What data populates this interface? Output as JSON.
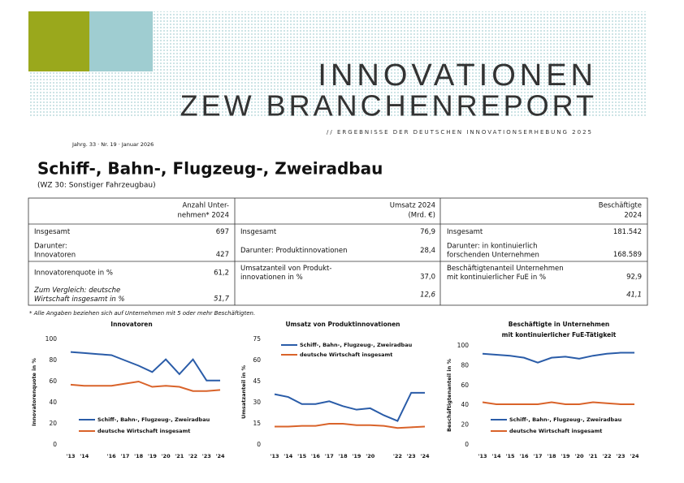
{
  "header": {
    "title": "INNOVATIONEN",
    "subtitle": "ZEW BRANCHENREPORT",
    "tagline": "// ERGEBNISSE DER DEUTSCHEN INNOVATIONSERHEBUNG 2025",
    "issue": "Jahrg. 33 · Nr. 19 · Januar 2026"
  },
  "heading": {
    "title": "Schiff-, Bahn-, Flugzeug-, Zweiradbau",
    "subtitle": "(WZ 30: Sonstiger Fahrzeugbau)"
  },
  "table": {
    "columns": [
      {
        "header": [
          "Anzahl Unter-",
          "nehmen* 2024"
        ],
        "rows": [
          {
            "label": [
              "Insgesamt"
            ],
            "value": "697"
          },
          {
            "label": [
              "Darunter:",
              "Innovatoren"
            ],
            "value": "427"
          },
          {
            "label": [
              "Innovatorenquote in %"
            ],
            "value": "61,2"
          },
          {
            "label": [
              "Zum Vergleich: deutsche",
              "Wirtschaft insgesamt in %"
            ],
            "value": "51,7"
          }
        ]
      },
      {
        "header": [
          "Umsatz 2024",
          "(Mrd. €)"
        ],
        "rows": [
          {
            "label": [
              "Insgesamt"
            ],
            "value": "76,9"
          },
          {
            "label": [
              "Darunter: Produktinnovationen"
            ],
            "value": "28,4"
          },
          {
            "label": [
              "Umsatzanteil von Produkt-",
              "innovationen in %"
            ],
            "value": "37,0"
          },
          {
            "value": "12,6"
          }
        ]
      },
      {
        "header": [
          "Beschäftigte",
          "2024"
        ],
        "rows": [
          {
            "label": [
              "Insgesamt"
            ],
            "value": "181.542"
          },
          {
            "label": [
              "Darunter: in kontinuierlich",
              "forschenden Unternehmen"
            ],
            "value": "168.589"
          },
          {
            "label": [
              "Beschäftigtenanteil Unternehmen",
              "mit kontinuierlicher FuE in %"
            ],
            "value": "92,9"
          },
          {
            "value": "41,1"
          }
        ]
      }
    ]
  },
  "footnote": "* Alle Angaben beziehen sich auf Unternehmen mit 5 oder mehr Beschäftigten.",
  "chart_data": [
    {
      "type": "line",
      "title": "Innovatoren",
      "y_label": "Innovatorenquote in %",
      "legend": "lower left",
      "categories": [
        "'13",
        "'14",
        null,
        "'16",
        "'17",
        "'18",
        "'19",
        "'20",
        "'21",
        "'22",
        "'23",
        "'24"
      ],
      "ylim": [
        0,
        100
      ],
      "yticks": [
        0,
        20,
        40,
        60,
        80,
        100
      ],
      "series": [
        {
          "name": "Schiff-, Bahn-, Flugzeug-, Zweiradbau",
          "color": "#2a5ca8",
          "values": [
            88,
            87,
            86,
            85,
            80,
            75,
            69,
            81,
            67,
            81,
            61,
            61
          ]
        },
        {
          "name": "deutsche Wirtschaft insgesamt",
          "color": "#d9632a",
          "values": [
            57,
            56,
            56,
            56,
            58,
            60,
            55,
            56,
            55,
            51,
            51,
            52
          ]
        }
      ]
    },
    {
      "type": "line",
      "title": "Umsatz von Produktinnovationen",
      "y_label": "Umsatzanteil in %",
      "legend": "upper left",
      "categories": [
        "'13",
        "'14",
        "'15",
        "'16",
        "'17",
        "'18",
        "'19",
        "'20",
        null,
        "'22",
        "'23",
        "'24"
      ],
      "ylim": [
        0,
        75
      ],
      "yticks": [
        0,
        15,
        30,
        45,
        60,
        75
      ],
      "series": [
        {
          "name": "Schiff-, Bahn-, Flugzeug-, Zweiradbau",
          "color": "#2a5ca8",
          "values": [
            36,
            34,
            29,
            29,
            31,
            27.5,
            25,
            26,
            21,
            17,
            37,
            37
          ]
        },
        {
          "name": "deutsche Wirtschaft insgesamt",
          "color": "#d9632a",
          "values": [
            13,
            13,
            13.5,
            13.5,
            15,
            15,
            14,
            14,
            13.5,
            12,
            12.5,
            13
          ]
        }
      ]
    },
    {
      "type": "line",
      "title": "Beschäftigte in Unternehmen",
      "subtitle": "mit kontinuierlicher FuE-Tätigkeit",
      "y_label": "Beschäftigtenanteil in %",
      "legend": "lower left",
      "categories": [
        "'13",
        "'14",
        "'15",
        "'16",
        "'17",
        "'18",
        "'19",
        "'20",
        "'21",
        "'22",
        "'23",
        "'24"
      ],
      "ylim": [
        0,
        100
      ],
      "yticks": [
        0,
        20,
        40,
        60,
        80,
        100
      ],
      "series": [
        {
          "name": "Schiff-, Bahn-, Flugzeug-, Zweiradbau",
          "color": "#2a5ca8",
          "values": [
            92,
            91,
            90,
            88,
            83,
            88,
            89,
            87,
            90,
            92,
            93,
            93
          ]
        },
        {
          "name": "deutsche Wirtschaft insgesamt",
          "color": "#d9632a",
          "values": [
            43,
            41,
            41,
            41,
            41,
            43,
            41,
            41,
            43,
            42,
            41,
            41
          ]
        }
      ]
    }
  ]
}
